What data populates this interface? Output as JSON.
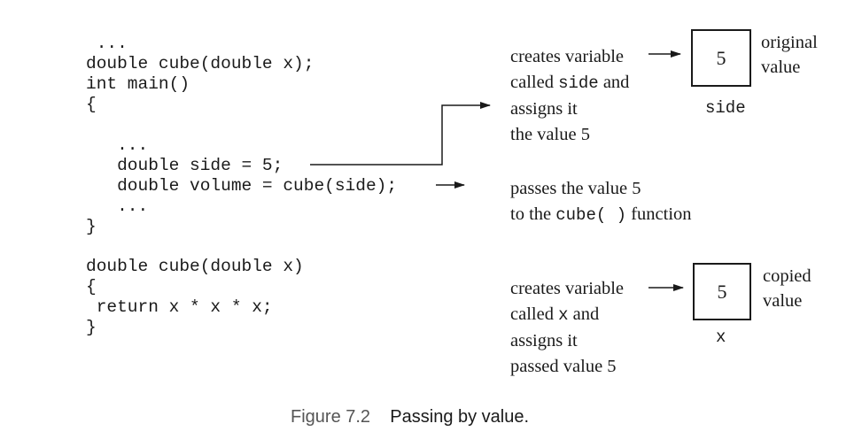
{
  "code": {
    "lines": [
      " ...",
      "double cube(double x);",
      "int main()",
      "{",
      "",
      "   ...",
      "   double side = 5;",
      "   double volume = cube(side);",
      "   ...",
      "}",
      "",
      "double cube(double x)",
      "{",
      " return x * x * x;",
      "}"
    ]
  },
  "annotations": {
    "side_create": {
      "line1": "creates variable",
      "line2_prefix": "called ",
      "line2_code": "side",
      "line2_suffix": " and",
      "line3": "assigns it",
      "line4": "the value 5"
    },
    "pass": {
      "line1": "passes the value 5",
      "line2_prefix": "to the ",
      "line2_code": "cube( )",
      "line2_suffix": " function"
    },
    "x_create": {
      "line1": "creates variable",
      "line2_prefix": "called ",
      "line2_code": "x",
      "line2_suffix": " and",
      "line3": "assigns it",
      "line4": "passed value 5"
    }
  },
  "boxes": {
    "side": {
      "value": "5",
      "label": "side",
      "note_line1": "original",
      "note_line2": "value"
    },
    "x": {
      "value": "5",
      "label": "x",
      "note_line1": "copied",
      "note_line2": "value"
    }
  },
  "caption": {
    "number": "Figure 7.2",
    "text": "Passing by value."
  },
  "colors": {
    "ink": "#1a1a1a",
    "caption_number": "#555555",
    "background": "#ffffff"
  }
}
